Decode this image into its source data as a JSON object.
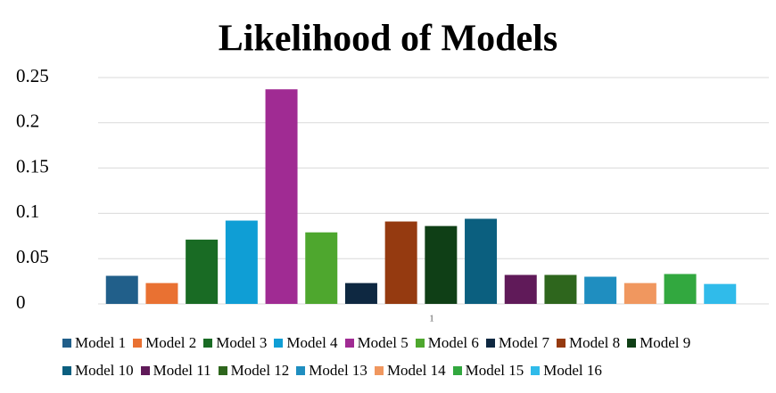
{
  "chart_data": {
    "type": "bar",
    "title": "Likelihood of Models",
    "categories": [
      "1"
    ],
    "series": [
      {
        "name": "Model 1",
        "color": "#215f8a",
        "values": [
          0.031
        ]
      },
      {
        "name": "Model 2",
        "color": "#e97132",
        "values": [
          0.023
        ]
      },
      {
        "name": "Model 3",
        "color": "#196b24",
        "values": [
          0.071
        ]
      },
      {
        "name": "Model 4",
        "color": "#0f9ed5",
        "values": [
          0.092
        ]
      },
      {
        "name": "Model 5",
        "color": "#a02b93",
        "values": [
          0.237
        ]
      },
      {
        "name": "Model 6",
        "color": "#4ea72e",
        "values": [
          0.079
        ]
      },
      {
        "name": "Model 7",
        "color": "#0e2841",
        "values": [
          0.023
        ]
      },
      {
        "name": "Model 8",
        "color": "#953a10",
        "values": [
          0.091
        ]
      },
      {
        "name": "Model 9",
        "color": "#0f3f16",
        "values": [
          0.086
        ]
      },
      {
        "name": "Model 10",
        "color": "#0b5f7f",
        "values": [
          0.094
        ]
      },
      {
        "name": "Model 11",
        "color": "#601a59",
        "values": [
          0.032
        ]
      },
      {
        "name": "Model 12",
        "color": "#2e661d",
        "values": [
          0.032
        ]
      },
      {
        "name": "Model 13",
        "color": "#1f8ec0",
        "values": [
          0.03
        ]
      },
      {
        "name": "Model 14",
        "color": "#f0975f",
        "values": [
          0.023
        ]
      },
      {
        "name": "Model 15",
        "color": "#32a83f",
        "values": [
          0.033
        ]
      },
      {
        "name": "Model 16",
        "color": "#30bbea",
        "values": [
          0.022
        ]
      }
    ],
    "ylim": [
      0,
      0.25
    ],
    "yticks": [
      0,
      0.05,
      0.1,
      0.15,
      0.2,
      0.25
    ],
    "grid": true
  }
}
